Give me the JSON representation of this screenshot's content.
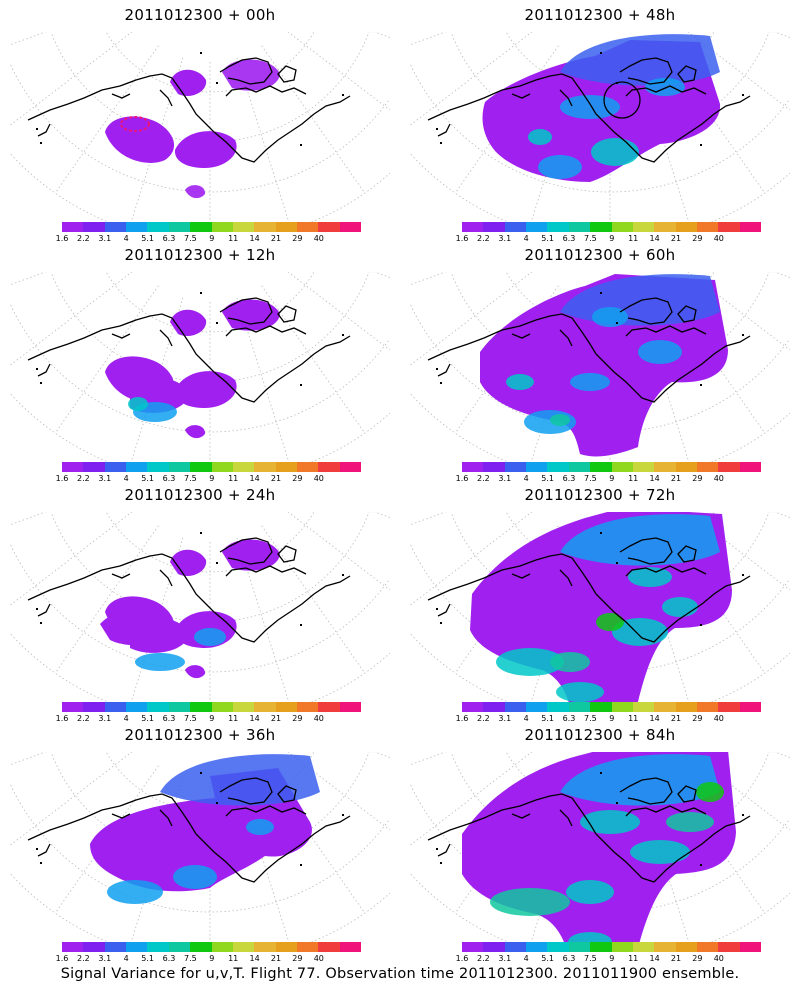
{
  "panels": [
    {
      "title": "2011012300 + 00h",
      "stage": 0,
      "circle": false,
      "hotspot": true
    },
    {
      "title": "2011012300 + 48h",
      "stage": 4,
      "circle": true,
      "hotspot": false
    },
    {
      "title": "2011012300 + 12h",
      "stage": 1,
      "circle": false,
      "hotspot": false
    },
    {
      "title": "2011012300 + 60h",
      "stage": 5,
      "circle": false,
      "hotspot": false
    },
    {
      "title": "2011012300 + 24h",
      "stage": 2,
      "circle": false,
      "hotspot": false
    },
    {
      "title": "2011012300 + 72h",
      "stage": 6,
      "circle": false,
      "hotspot": false
    },
    {
      "title": "2011012300 + 36h",
      "stage": 3,
      "circle": false,
      "hotspot": false
    },
    {
      "title": "2011012300 + 84h",
      "stage": 7,
      "circle": false,
      "hotspot": false
    }
  ],
  "colorbar": {
    "colors": [
      "#a020f0",
      "#7f1ff0",
      "#3b60f0",
      "#10a0f0",
      "#00c8c8",
      "#10c8a0",
      "#10c810",
      "#90d820",
      "#c8d83c",
      "#e6b432",
      "#e6a01e",
      "#f07828",
      "#f03c3c",
      "#f0147a"
    ],
    "labels": [
      "1.6",
      "2.2",
      "3.1",
      "4",
      "5.1",
      "6.3",
      "7.5",
      "9",
      "11",
      "14",
      "21",
      "29",
      "40"
    ]
  },
  "footer": "Signal Variance for u,v,T. Flight 77. Observation time 2011012300. 2011011900 ensemble."
}
